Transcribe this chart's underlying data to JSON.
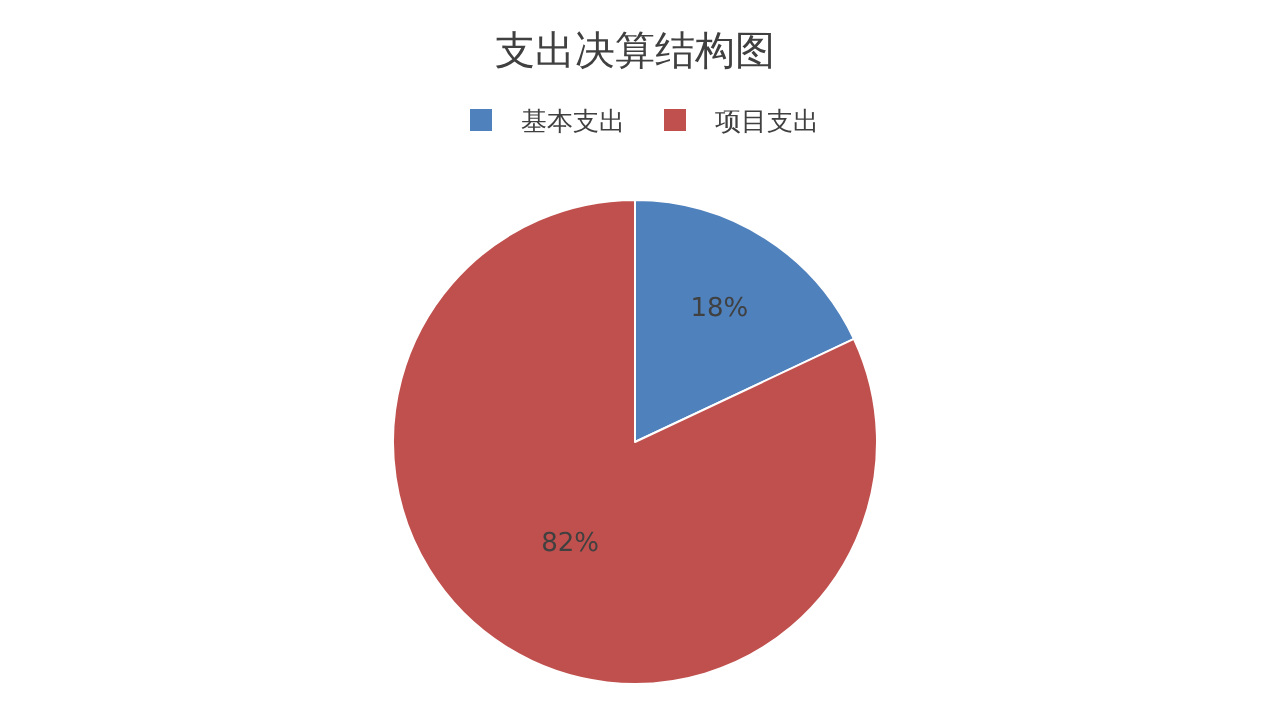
{
  "chart_data": {
    "type": "pie",
    "title": "支出决算结构图",
    "categories": [
      "基本支出",
      "项目支出"
    ],
    "values": [
      18,
      82
    ],
    "colors": [
      "#4f81bd",
      "#c0504d"
    ],
    "value_labels": [
      "18%",
      "82%"
    ],
    "legend": "top"
  }
}
